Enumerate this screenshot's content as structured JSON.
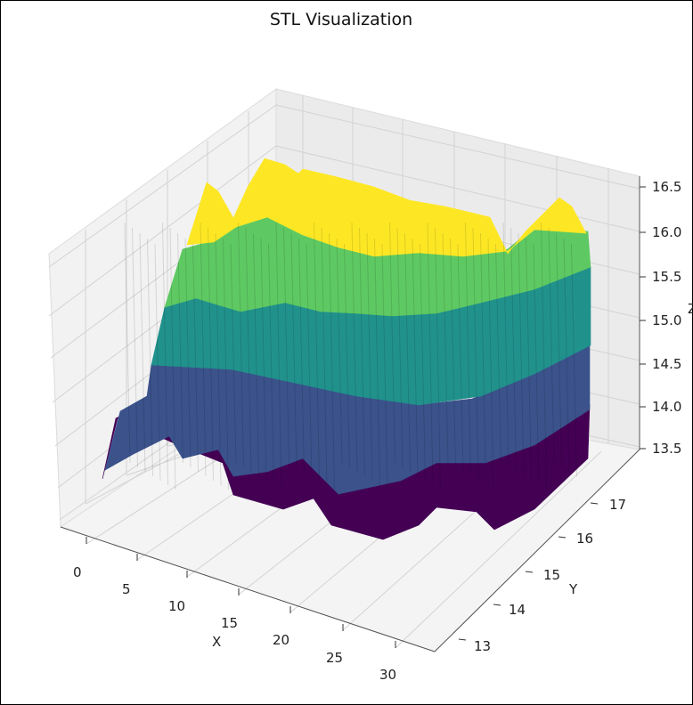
{
  "chart_data": {
    "type": "surface3d",
    "title": "STL Visualization",
    "xlabel": "X",
    "ylabel": "Y",
    "zlabel": "Z",
    "x_ticks": [
      "0",
      "5",
      "10",
      "15",
      "20",
      "25",
      "30"
    ],
    "y_ticks": [
      "13",
      "14",
      "15",
      "16",
      "17"
    ],
    "z_ticks": [
      "13.5",
      "14.0",
      "14.5",
      "15.0",
      "15.5",
      "16.0",
      "16.5"
    ],
    "xlim": [
      -2,
      32
    ],
    "ylim": [
      12.4,
      17.6
    ],
    "zlim": [
      13.5,
      16.5
    ],
    "colormap": "viridis",
    "colormap_stops": [
      "#440154",
      "#3b528b",
      "#21918c",
      "#5ec962",
      "#fde725"
    ],
    "grid": true
  }
}
